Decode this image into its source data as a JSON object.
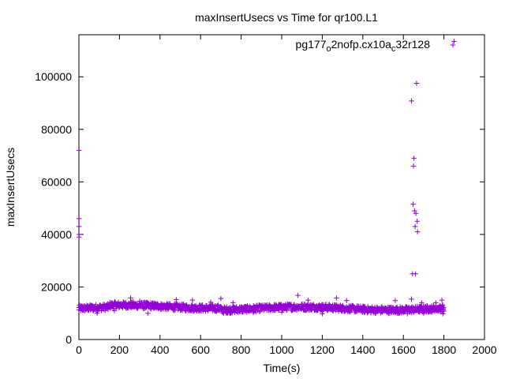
{
  "chart_data": {
    "type": "scatter",
    "title": "maxInsertUsecs vs Time for qr100.L1",
    "xlabel": "Time(s)",
    "ylabel": "maxInsertUsecs",
    "xlim": [
      0,
      2000
    ],
    "ylim": [
      0,
      116000
    ],
    "x_ticks": [
      0,
      200,
      400,
      600,
      800,
      1000,
      1200,
      1400,
      1600,
      1800,
      2000
    ],
    "y_ticks": [
      0,
      20000,
      40000,
      60000,
      80000,
      100000
    ],
    "grid": false,
    "legend_position": "top-right",
    "marker": "+",
    "series": [
      {
        "name": "pg177_o2nofp.cx10a_c32r128",
        "legend_base_1": "pg177",
        "legend_sub_1": "o",
        "legend_base_2": "2nofp.cx10a",
        "legend_sub_2": "c",
        "legend_base_3": "32r128",
        "color": "#9400d3",
        "band": {
          "x_from": 0,
          "x_to": 1800,
          "step": 3,
          "y_center": 11800,
          "y_spread": 1300
        },
        "points": [
          [
            1,
            72000
          ],
          [
            1,
            46000
          ],
          [
            1,
            43000
          ],
          [
            1,
            40000
          ],
          [
            1,
            39000
          ],
          [
            40,
            12800
          ],
          [
            90,
            10000
          ],
          [
            175,
            11000
          ],
          [
            255,
            15800
          ],
          [
            300,
            14600
          ],
          [
            340,
            10000
          ],
          [
            480,
            15200
          ],
          [
            560,
            15000
          ],
          [
            650,
            14200
          ],
          [
            700,
            15600
          ],
          [
            760,
            14000
          ],
          [
            860,
            10200
          ],
          [
            1000,
            10400
          ],
          [
            1080,
            16800
          ],
          [
            1130,
            15000
          ],
          [
            1200,
            9800
          ],
          [
            1270,
            15800
          ],
          [
            1320,
            14800
          ],
          [
            1440,
            10200
          ],
          [
            1560,
            14800
          ],
          [
            1620,
            9800
          ],
          [
            1640,
            90800
          ],
          [
            1640,
            15400
          ],
          [
            1645,
            25000
          ],
          [
            1648,
            51500
          ],
          [
            1650,
            66000
          ],
          [
            1652,
            69000
          ],
          [
            1655,
            49000
          ],
          [
            1658,
            43000
          ],
          [
            1660,
            25000
          ],
          [
            1662,
            48000
          ],
          [
            1665,
            97500
          ],
          [
            1668,
            45000
          ],
          [
            1670,
            41000
          ],
          [
            1690,
            14000
          ],
          [
            1700,
            10000
          ],
          [
            1760,
            14000
          ],
          [
            1790,
            15000
          ],
          [
            1795,
            9800
          ],
          [
            1850,
            113500
          ]
        ]
      }
    ]
  }
}
